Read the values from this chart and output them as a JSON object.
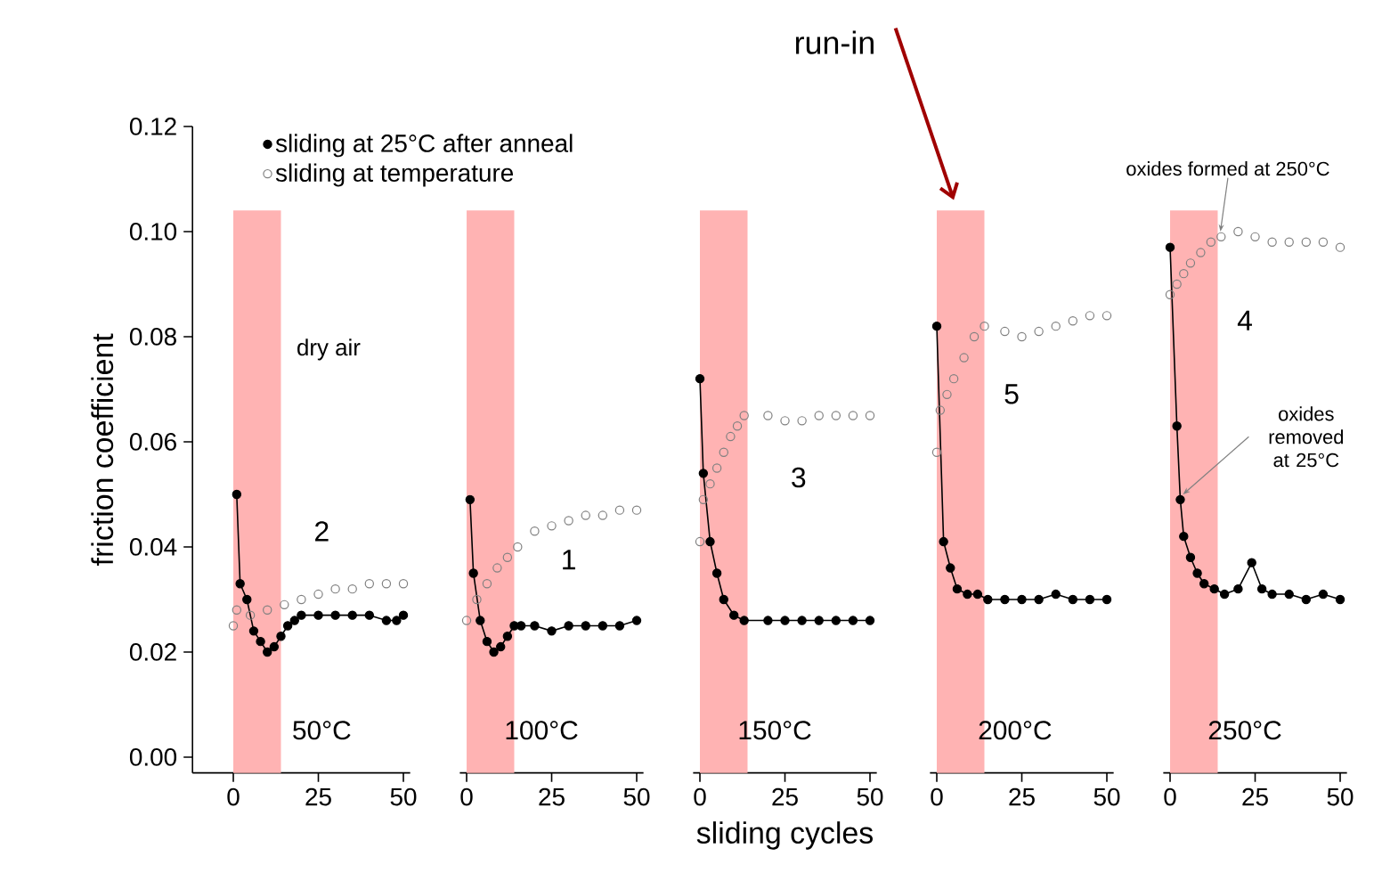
{
  "chart_data": [
    {
      "type": "scatter",
      "ylabel": "friction coefficient",
      "xlim": [
        -12,
        52
      ],
      "xticks": [
        0,
        25,
        50
      ],
      "ylim": [
        -0.003,
        0.12
      ],
      "yticks": [
        {
          "value": 0,
          "label": "0.00"
        },
        {
          "value": 0.02,
          "label": "0.02"
        },
        {
          "value": 0.04,
          "label": "0.04"
        },
        {
          "value": 0.06,
          "label": "0.06"
        },
        {
          "value": 0.08,
          "label": "0.08"
        },
        {
          "value": 0.1,
          "label": "0.10"
        },
        {
          "value": 0.12,
          "label": "0.12"
        }
      ],
      "marker": "circle",
      "legend": "top right",
      "annotations": [
        "dry air",
        "2",
        "50°C"
      ],
      "bands": [
        {
          "axis": "x",
          "from": 0,
          "to": 14,
          "color": "#ffb3b3"
        }
      ],
      "series": [
        {
          "name": "sliding at 25°C after anneal",
          "type": "line",
          "color": "#000000",
          "x": [
            1,
            2,
            4,
            6,
            8,
            10,
            12,
            14,
            16,
            18,
            20,
            25,
            30,
            35,
            40,
            45,
            48,
            50
          ],
          "values": [
            0.05,
            0.033,
            0.03,
            0.024,
            0.022,
            0.02,
            0.021,
            0.023,
            0.025,
            0.026,
            0.027,
            0.027,
            0.027,
            0.027,
            0.027,
            0.026,
            0.026,
            0.027
          ]
        },
        {
          "name": "sliding at temperature",
          "type": "scatter",
          "color": "#808080",
          "x": [
            0,
            1,
            5,
            10,
            15,
            20,
            25,
            30,
            35,
            40,
            45,
            50
          ],
          "values": [
            0.025,
            0.028,
            0.027,
            0.028,
            0.029,
            0.03,
            0.031,
            0.032,
            0.032,
            0.033,
            0.033,
            0.033
          ]
        }
      ]
    },
    {
      "type": "scatter",
      "xlim": [
        -2,
        52
      ],
      "xticks": [
        0,
        25,
        50
      ],
      "ylim": [
        -0.003,
        0.12
      ],
      "tick_labels": "x",
      "marker": "circle",
      "annotations": [
        "1",
        "100°C"
      ],
      "bands": [
        {
          "axis": "x",
          "from": 0,
          "to": 14,
          "color": "#ffb3b3"
        }
      ],
      "series": [
        {
          "type": "line",
          "color": "#000000",
          "x": [
            1,
            2,
            4,
            6,
            8,
            10,
            12,
            14,
            16,
            20,
            25,
            30,
            35,
            40,
            45,
            50
          ],
          "values": [
            0.049,
            0.035,
            0.026,
            0.022,
            0.02,
            0.021,
            0.023,
            0.025,
            0.025,
            0.025,
            0.024,
            0.025,
            0.025,
            0.025,
            0.025,
            0.026
          ]
        },
        {
          "type": "scatter",
          "color": "#808080",
          "x": [
            0,
            3,
            6,
            9,
            12,
            15,
            20,
            25,
            30,
            35,
            40,
            45,
            50
          ],
          "values": [
            0.026,
            0.03,
            0.033,
            0.036,
            0.038,
            0.04,
            0.043,
            0.044,
            0.045,
            0.046,
            0.046,
            0.047,
            0.047
          ]
        }
      ]
    },
    {
      "type": "scatter",
      "xlabel": "sliding cycles",
      "xlim": [
        -2,
        52
      ],
      "xticks": [
        0,
        25,
        50
      ],
      "ylim": [
        -0.003,
        0.12
      ],
      "tick_labels": "x",
      "marker": "circle",
      "annotations": [
        "3",
        "150°C"
      ],
      "bands": [
        {
          "axis": "x",
          "from": 0,
          "to": 14,
          "color": "#ffb3b3"
        }
      ],
      "series": [
        {
          "type": "line",
          "color": "#000000",
          "x": [
            0,
            1,
            3,
            5,
            7,
            10,
            13,
            20,
            25,
            30,
            35,
            40,
            45,
            50
          ],
          "values": [
            0.072,
            0.054,
            0.041,
            0.035,
            0.03,
            0.027,
            0.026,
            0.026,
            0.026,
            0.026,
            0.026,
            0.026,
            0.026,
            0.026
          ]
        },
        {
          "type": "scatter",
          "color": "#808080",
          "x": [
            0,
            1,
            3,
            5,
            7,
            9,
            11,
            13,
            20,
            25,
            30,
            35,
            40,
            45,
            50
          ],
          "values": [
            0.041,
            0.049,
            0.052,
            0.055,
            0.058,
            0.061,
            0.063,
            0.065,
            0.065,
            0.064,
            0.064,
            0.065,
            0.065,
            0.065,
            0.065
          ]
        }
      ]
    },
    {
      "type": "scatter",
      "xlim": [
        -2,
        52
      ],
      "xticks": [
        0,
        25,
        50
      ],
      "ylim": [
        -0.003,
        0.12
      ],
      "tick_labels": "x",
      "marker": "circle",
      "annotations": [
        "5",
        "200°C",
        "run-in"
      ],
      "bands": [
        {
          "axis": "x",
          "from": 0,
          "to": 14,
          "color": "#ffb3b3"
        }
      ],
      "series": [
        {
          "type": "line",
          "color": "#000000",
          "x": [
            0,
            2,
            4,
            6,
            9,
            12,
            15,
            20,
            25,
            30,
            35,
            40,
            45,
            50
          ],
          "values": [
            0.082,
            0.041,
            0.036,
            0.032,
            0.031,
            0.031,
            0.03,
            0.03,
            0.03,
            0.03,
            0.031,
            0.03,
            0.03,
            0.03
          ]
        },
        {
          "type": "scatter",
          "color": "#808080",
          "x": [
            0,
            1,
            3,
            5,
            8,
            11,
            14,
            20,
            25,
            30,
            35,
            40,
            45,
            50
          ],
          "values": [
            0.058,
            0.066,
            0.069,
            0.072,
            0.076,
            0.08,
            0.082,
            0.081,
            0.08,
            0.081,
            0.082,
            0.083,
            0.084,
            0.084
          ]
        }
      ]
    },
    {
      "type": "scatter",
      "xlim": [
        -2,
        52
      ],
      "xticks": [
        0,
        25,
        50
      ],
      "ylim": [
        -0.003,
        0.12
      ],
      "tick_labels": "x",
      "marker": "circle",
      "annotations": [
        "4",
        "250°C",
        {
          "text": "oxides formed at 250°C",
          "x": 14,
          "y": 0.099
        },
        {
          "text": "oxides removed at 25°C",
          "x": 3,
          "y": 0.049
        }
      ],
      "bands": [
        {
          "axis": "x",
          "from": 0,
          "to": 14,
          "color": "#ffb3b3"
        }
      ],
      "series": [
        {
          "type": "line",
          "color": "#000000",
          "x": [
            0,
            2,
            3,
            4,
            6,
            8,
            10,
            13,
            16,
            20,
            24,
            27,
            30,
            35,
            40,
            45,
            50
          ],
          "values": [
            0.097,
            0.063,
            0.049,
            0.042,
            0.038,
            0.035,
            0.033,
            0.032,
            0.031,
            0.032,
            0.037,
            0.032,
            0.031,
            0.031,
            0.03,
            0.031,
            0.03
          ]
        },
        {
          "type": "scatter",
          "color": "#808080",
          "x": [
            0,
            2,
            4,
            6,
            9,
            12,
            15,
            20,
            25,
            30,
            35,
            40,
            45,
            50
          ],
          "values": [
            0.088,
            0.09,
            0.092,
            0.094,
            0.096,
            0.098,
            0.099,
            0.1,
            0.099,
            0.098,
            0.098,
            0.098,
            0.098,
            0.097
          ]
        }
      ]
    }
  ]
}
